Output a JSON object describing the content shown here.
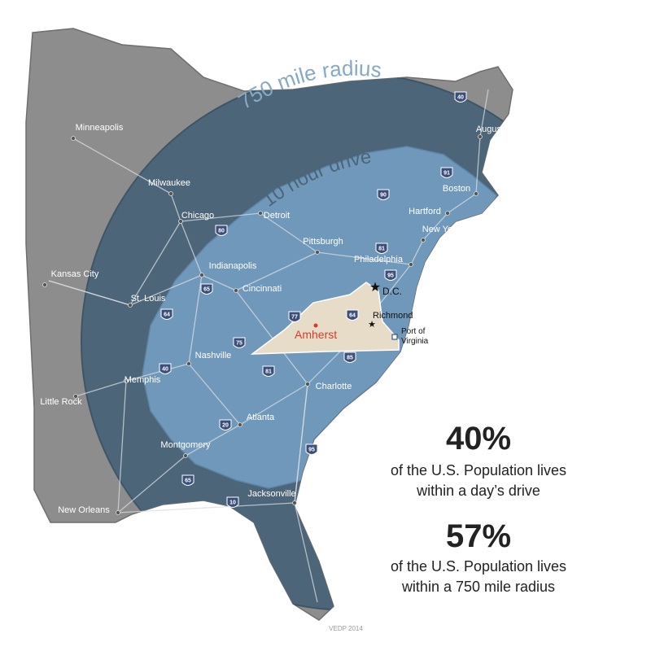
{
  "regions": {
    "outer": "750 mile radius",
    "inner": "10 hour drive"
  },
  "cities": [
    "Minneapolis",
    "Milwaukee",
    "Chicago",
    "Detroit",
    "Kansas City",
    "St. Louis",
    "Indianapolis",
    "Cincinnati",
    "Pittsburgh",
    "Philadelphia",
    "New York",
    "Hartford",
    "Boston",
    "Augusta",
    "Nashville",
    "Memphis",
    "Little Rock",
    "Charlotte",
    "Atlanta",
    "Montgomery",
    "Jacksonville",
    "New Orleans"
  ],
  "virginia": {
    "capital": "D.C.",
    "richmond": "Richmond",
    "home": "Amherst",
    "port": [
      "Port of",
      "Virginia"
    ]
  },
  "interstates": [
    "40",
    "91",
    "90",
    "80",
    "81",
    "95",
    "64",
    "65",
    "64",
    "77",
    "75",
    "81",
    "85",
    "40",
    "20",
    "95",
    "65",
    "10"
  ],
  "stats": [
    {
      "figure": "40%",
      "lines": [
        "of the U.S. Population lives",
        "within a day’s drive"
      ]
    },
    {
      "figure": "57%",
      "lines": [
        "of the U.S. Population lives",
        "within a 750 mile radius"
      ]
    }
  ],
  "credit": "VEDP 2014"
}
